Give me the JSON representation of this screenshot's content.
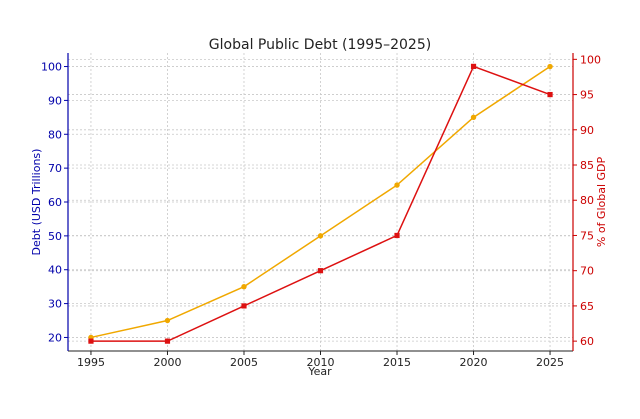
{
  "chart_data": {
    "type": "line",
    "title": "Global Public Debt (1995–2025)",
    "xlabel": "Year",
    "x": [
      1995,
      2000,
      2005,
      2010,
      2015,
      2020,
      2025
    ],
    "xlim": [
      1993.5,
      2026.5
    ],
    "grid": true,
    "left_axis": {
      "label": "Debt (USD Trillions)",
      "ylim": [
        16,
        104
      ],
      "ticks": [
        20,
        30,
        40,
        50,
        60,
        70,
        80,
        90,
        100
      ],
      "color": "#0000aa"
    },
    "right_axis": {
      "label": "% of Global GDP",
      "ylim": [
        58.6,
        100.9
      ],
      "ticks": [
        60,
        65,
        70,
        75,
        80,
        85,
        90,
        95,
        100
      ],
      "color": "#cc0000"
    },
    "series": [
      {
        "axis": "left",
        "color": "#f0a800",
        "marker": "circle",
        "values": [
          20,
          25,
          35,
          50,
          65,
          85,
          100
        ]
      },
      {
        "axis": "right",
        "color": "#dd1111",
        "marker": "square",
        "values": [
          60,
          60,
          65,
          70,
          75,
          99,
          95
        ]
      }
    ]
  }
}
